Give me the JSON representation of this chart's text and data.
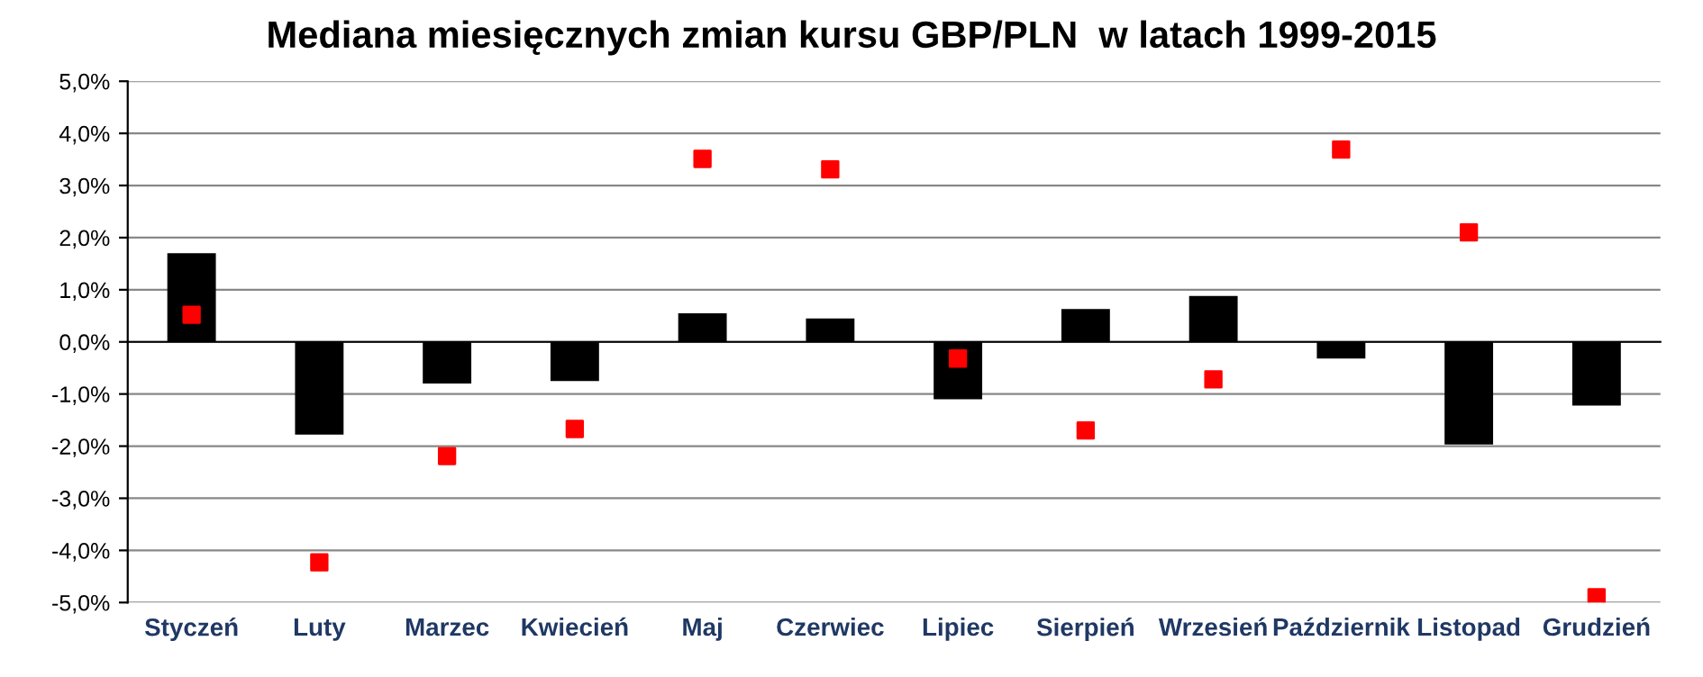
{
  "chart_data": {
    "type": "bar",
    "title": "Mediana miesięcznych zmian kursu GBP/PLN  w latach 1999-2015",
    "categories": [
      "Styczeń",
      "Luty",
      "Marzec",
      "Kwiecień",
      "Maj",
      "Czerwiec",
      "Lipiec",
      "Sierpień",
      "Wrzesień",
      "Październik",
      "Listopad",
      "Grudzień"
    ],
    "series": [
      {
        "color": "#000000",
        "values": [
          1.7,
          -1.78,
          -0.8,
          -0.75,
          0.55,
          0.45,
          -1.1,
          0.63,
          0.88,
          -0.32,
          -1.97,
          -1.22
        ]
      },
      {
        "type": "scatter",
        "color": "#ff0000",
        "marker": "square",
        "x": [
          "Styczeń",
          "Luty",
          "Marzec",
          "Kwiecień",
          "Maj",
          "Czerwiec",
          "Lipiec",
          "Sierpień",
          "Wrzesień",
          "Październik",
          "Listopad",
          "Grudzień"
        ],
        "values": [
          0.52,
          -4.23,
          -2.19,
          -1.67,
          3.51,
          3.31,
          -0.32,
          -1.7,
          -0.72,
          3.69,
          2.1,
          -4.9
        ]
      }
    ],
    "ylim": [
      -5,
      5
    ],
    "yticks": [
      {
        "value": -5,
        "label": "-5,0%"
      },
      {
        "value": -4,
        "label": "-4,0%"
      },
      {
        "value": -3,
        "label": "-3,0%"
      },
      {
        "value": -2,
        "label": "-2,0%"
      },
      {
        "value": -1,
        "label": "-1,0%"
      },
      {
        "value": 0,
        "label": "0,0%"
      },
      {
        "value": 1,
        "label": "1,0%"
      },
      {
        "value": 2,
        "label": "2,0%"
      },
      {
        "value": 3,
        "label": "3,0%"
      },
      {
        "value": 4,
        "label": "4,0%"
      },
      {
        "value": 5,
        "label": "5,0%"
      }
    ],
    "grid": "y",
    "legend": false
  }
}
